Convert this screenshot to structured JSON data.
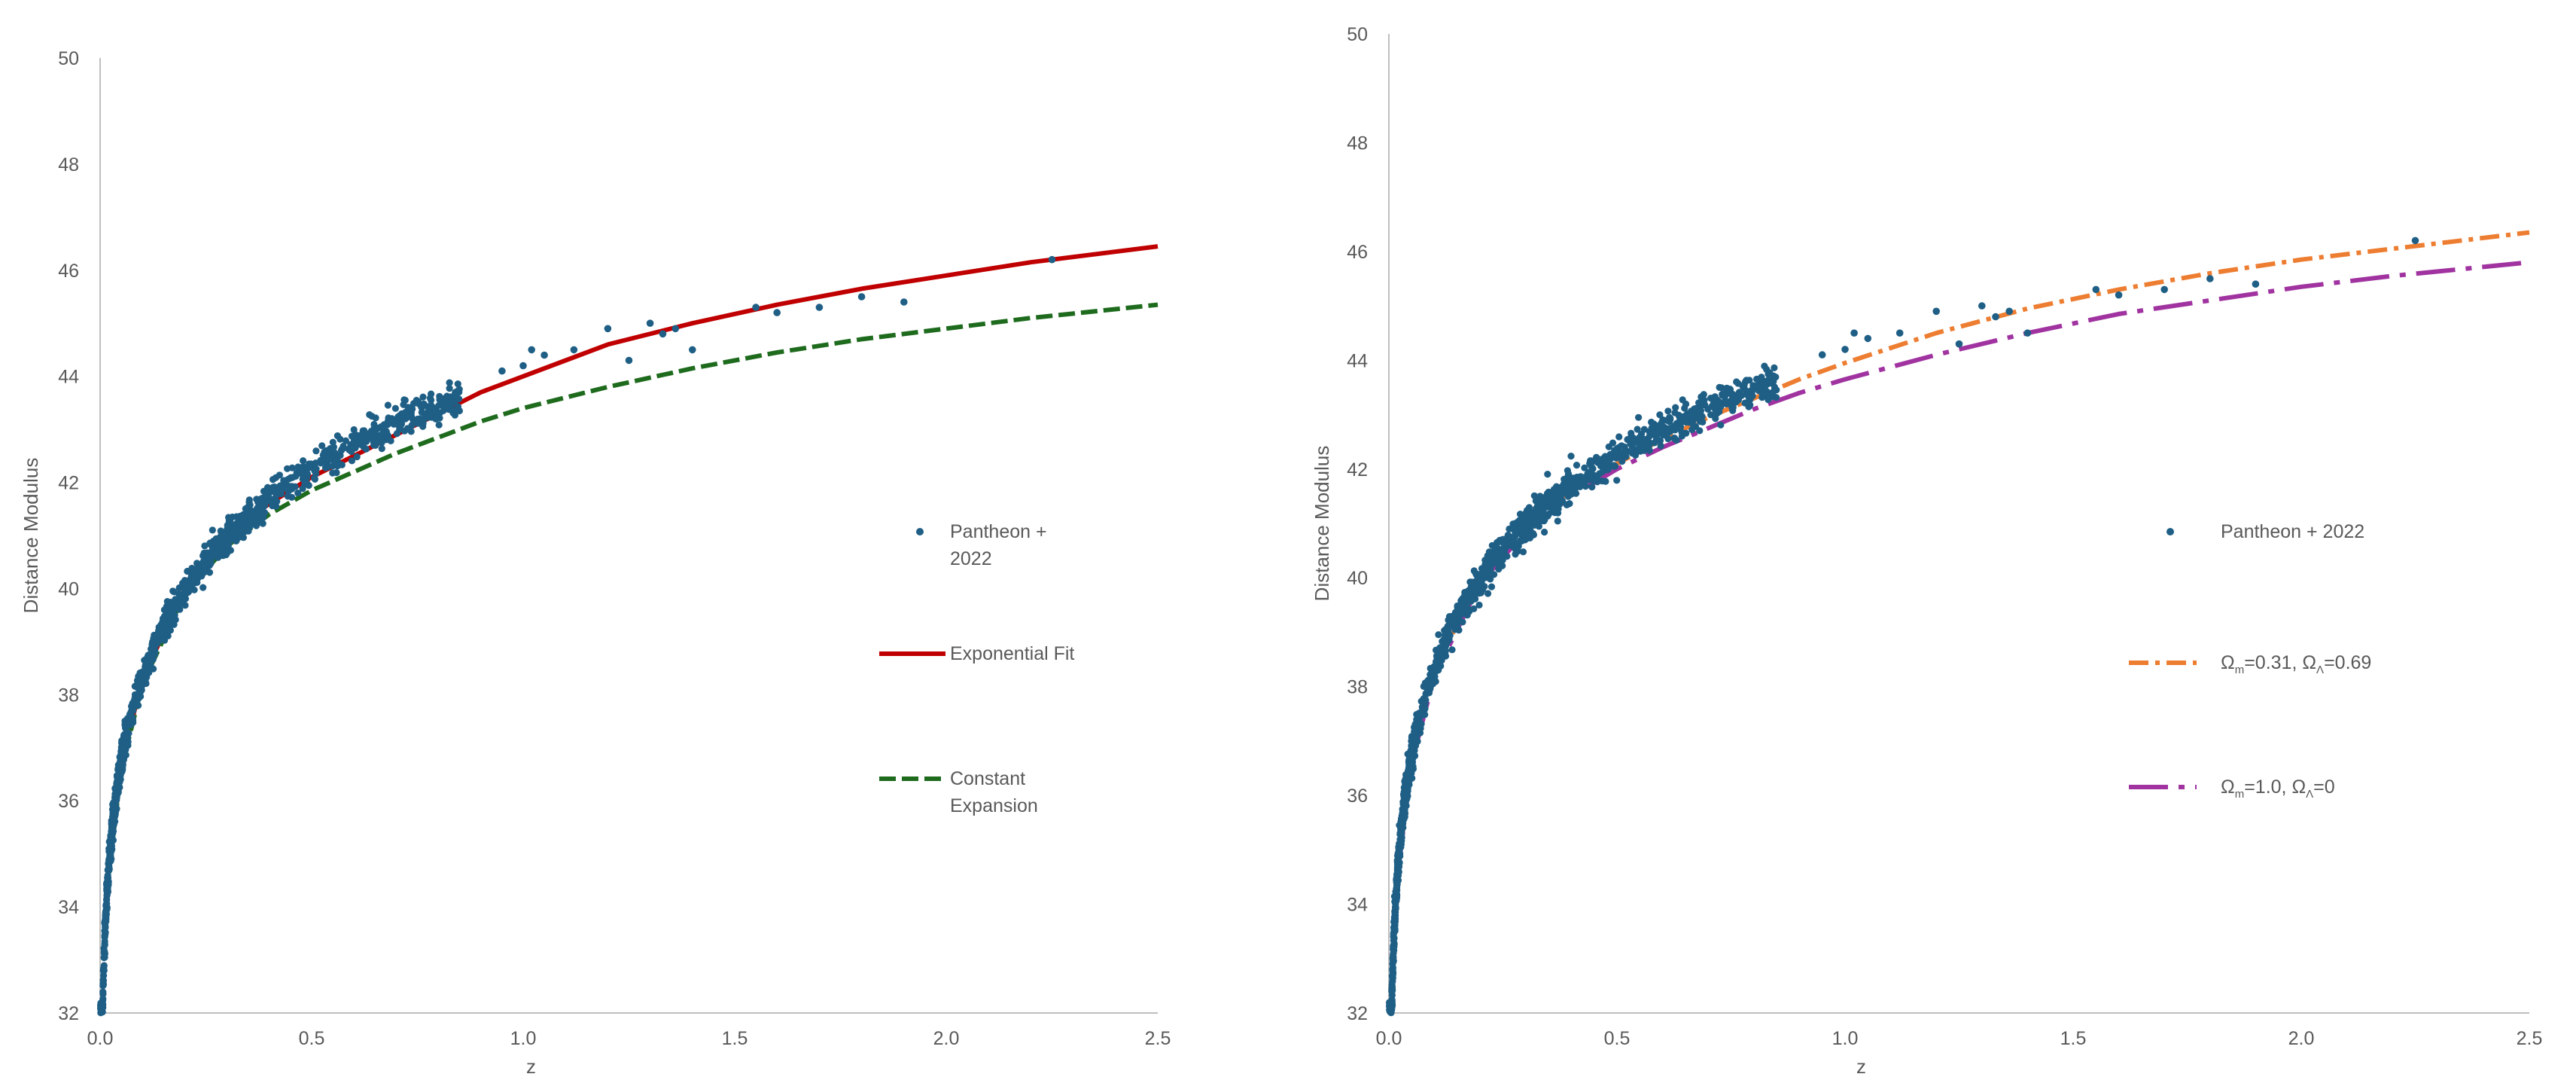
{
  "chart_data": [
    {
      "type": "scatter",
      "title": "",
      "xlabel": "z",
      "ylabel": "Distance Modulus",
      "xlim": [
        0,
        2.5
      ],
      "ylim": [
        32,
        50
      ],
      "x_ticks": [
        "0.0",
        "0.5",
        "1.0",
        "1.5",
        "2.0",
        "2.5"
      ],
      "y_ticks": [
        "32",
        "34",
        "36",
        "38",
        "40",
        "42",
        "44",
        "46",
        "48",
        "50"
      ],
      "grid": false,
      "legend_position": "right",
      "colors": {
        "points": "#1f5f86",
        "exponential": "#c00000",
        "constant": "#1e6b1e"
      },
      "series": [
        {
          "name": "Pantheon + 2022",
          "name_lines": [
            "Pantheon +",
            "2022"
          ],
          "kind": "points"
        },
        {
          "name": "Exponential Fit",
          "name_lines": [
            "Exponential Fit"
          ],
          "kind": "line",
          "style": "solid",
          "x": [
            0.01,
            0.02,
            0.05,
            0.1,
            0.2,
            0.3,
            0.4,
            0.5,
            0.6,
            0.7,
            0.8,
            0.9,
            1.0,
            1.2,
            1.4,
            1.6,
            1.8,
            2.0,
            2.2,
            2.5
          ],
          "y": [
            33.1,
            34.6,
            36.7,
            38.3,
            40.0,
            41.0,
            41.6,
            42.1,
            42.5,
            42.9,
            43.3,
            43.7,
            44.0,
            44.6,
            45.0,
            45.35,
            45.65,
            45.9,
            46.15,
            46.45
          ]
        },
        {
          "name": "Constant Expansion",
          "name_lines": [
            "Constant",
            "Expansion"
          ],
          "kind": "line",
          "style": "dashed",
          "x": [
            0.01,
            0.02,
            0.05,
            0.1,
            0.2,
            0.3,
            0.4,
            0.5,
            0.6,
            0.7,
            0.8,
            0.9,
            1.0,
            1.2,
            1.4,
            1.6,
            1.8,
            2.0,
            2.2,
            2.5
          ],
          "y": [
            33.1,
            34.6,
            36.6,
            38.2,
            39.9,
            40.8,
            41.4,
            41.85,
            42.2,
            42.55,
            42.85,
            43.15,
            43.4,
            43.8,
            44.15,
            44.45,
            44.7,
            44.9,
            45.1,
            45.35
          ]
        }
      ],
      "points_outliers": {
        "x": [
          0.95,
          1.0,
          1.02,
          1.05,
          1.12,
          1.2,
          1.25,
          1.3,
          1.33,
          1.36,
          1.4,
          1.55,
          1.6,
          1.7,
          1.8,
          1.9,
          2.25
        ],
        "y": [
          44.1,
          44.2,
          44.5,
          44.4,
          44.5,
          44.9,
          44.3,
          45.0,
          44.8,
          44.9,
          44.5,
          45.3,
          45.2,
          45.3,
          45.5,
          45.4,
          46.2
        ]
      }
    },
    {
      "type": "scatter",
      "title": "",
      "xlabel": "z",
      "ylabel": "Distance Modulus",
      "xlim": [
        0,
        2.5
      ],
      "ylim": [
        32,
        50
      ],
      "x_ticks": [
        "0.0",
        "0.5",
        "1.0",
        "1.5",
        "2.0",
        "2.5"
      ],
      "y_ticks": [
        "32",
        "34",
        "36",
        "38",
        "40",
        "42",
        "44",
        "46",
        "48",
        "50"
      ],
      "grid": false,
      "legend_position": "right",
      "colors": {
        "points": "#1f5f86",
        "lcdm": "#ed7d31",
        "eds": "#a033a0"
      },
      "series": [
        {
          "name": "Pantheon + 2022",
          "name_lines": [
            "Pantheon + 2022"
          ],
          "kind": "points"
        },
        {
          "name": "Ωm=0.31, ΩΛ=0.69",
          "kind": "line",
          "style": "dashdot",
          "legend_parts": [
            "Ω",
            "m",
            "=0.31, Ω",
            "Λ",
            "=0.69"
          ],
          "x": [
            0.01,
            0.02,
            0.05,
            0.1,
            0.2,
            0.3,
            0.4,
            0.5,
            0.6,
            0.7,
            0.8,
            0.9,
            1.0,
            1.2,
            1.4,
            1.6,
            1.8,
            2.0,
            2.2,
            2.5
          ],
          "y": [
            33.1,
            34.6,
            36.7,
            38.3,
            40.0,
            41.0,
            41.6,
            42.1,
            42.55,
            42.95,
            43.3,
            43.65,
            43.95,
            44.5,
            44.95,
            45.3,
            45.6,
            45.85,
            46.05,
            46.35
          ]
        },
        {
          "name": "Ωm=1.0, ΩΛ=0",
          "kind": "line",
          "style": "longdashdot",
          "legend_parts": [
            "Ω",
            "m",
            "=1.0,   Ω",
            "Λ",
            "=0"
          ],
          "x": [
            0.01,
            0.02,
            0.05,
            0.1,
            0.2,
            0.3,
            0.4,
            0.5,
            0.6,
            0.7,
            0.8,
            0.9,
            1.0,
            1.2,
            1.4,
            1.6,
            1.8,
            2.0,
            2.2,
            2.5
          ],
          "y": [
            33.1,
            34.6,
            36.6,
            38.2,
            39.9,
            40.85,
            41.5,
            42.0,
            42.4,
            42.75,
            43.1,
            43.4,
            43.65,
            44.1,
            44.5,
            44.85,
            45.1,
            45.35,
            45.55,
            45.8
          ]
        }
      ],
      "points_outliers": {
        "x": [
          0.95,
          1.0,
          1.02,
          1.05,
          1.12,
          1.2,
          1.25,
          1.3,
          1.33,
          1.36,
          1.4,
          1.55,
          1.6,
          1.7,
          1.8,
          1.9,
          2.25
        ],
        "y": [
          44.1,
          44.2,
          44.5,
          44.4,
          44.5,
          44.9,
          44.3,
          45.0,
          44.8,
          44.9,
          44.5,
          45.3,
          45.2,
          45.3,
          45.5,
          45.4,
          46.2
        ]
      }
    }
  ]
}
